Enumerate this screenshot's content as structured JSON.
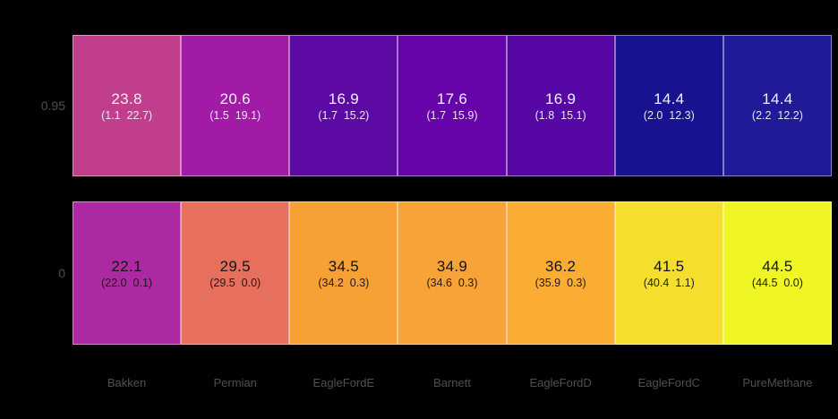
{
  "chart_data": {
    "type": "heatmap",
    "title": "",
    "xlabel": "",
    "ylabel": "",
    "background": "#000000",
    "label_color": "#4f4f4f",
    "cell_border_color": "rgba(255,255,255,0.45)",
    "columns": [
      "Bakken",
      "Permian",
      "EagleFordE",
      "Barnett",
      "EagleFordD",
      "EagleFordC",
      "PureMethane"
    ],
    "rows": [
      {
        "label": "0.95",
        "text_color": "#f2f0f5",
        "cells": [
          {
            "value": 23.8,
            "pair": [
              1.1,
              22.7
            ],
            "sub": "(1.1  22.7)",
            "color": "#c13e8c"
          },
          {
            "value": 20.6,
            "pair": [
              1.5,
              19.1
            ],
            "sub": "(1.5  19.1)",
            "color": "#a21ba6"
          },
          {
            "value": 16.9,
            "pair": [
              1.7,
              15.2
            ],
            "sub": "(1.7  15.2)",
            "color": "#5c0aa3"
          },
          {
            "value": 17.6,
            "pair": [
              1.7,
              15.9
            ],
            "sub": "(1.7  15.9)",
            "color": "#6603a9"
          },
          {
            "value": 16.9,
            "pair": [
              1.8,
              15.1
            ],
            "sub": "(1.8  15.1)",
            "color": "#5707a3"
          },
          {
            "value": 14.4,
            "pair": [
              2.0,
              12.3
            ],
            "sub": "(2.0  12.3)",
            "color": "#171390"
          },
          {
            "value": 14.4,
            "pair": [
              2.2,
              12.2
            ],
            "sub": "(2.2  12.2)",
            "color": "#1e1a98"
          }
        ]
      },
      {
        "label": "0",
        "text_color": "#141414",
        "cells": [
          {
            "value": 22.1,
            "pair": [
              22.0,
              0.1
            ],
            "sub": "(22.0  0.1)",
            "color": "#ad29a1"
          },
          {
            "value": 29.5,
            "pair": [
              29.5,
              0.0
            ],
            "sub": "(29.5  0.0)",
            "color": "#e76f5e"
          },
          {
            "value": 34.5,
            "pair": [
              34.2,
              0.3
            ],
            "sub": "(34.2  0.3)",
            "color": "#f7a036"
          },
          {
            "value": 34.9,
            "pair": [
              34.6,
              0.3
            ],
            "sub": "(34.6  0.3)",
            "color": "#f8a338"
          },
          {
            "value": 36.2,
            "pair": [
              35.9,
              0.3
            ],
            "sub": "(35.9  0.3)",
            "color": "#fbac33"
          },
          {
            "value": 41.5,
            "pair": [
              40.4,
              1.1
            ],
            "sub": "(40.4  1.1)",
            "color": "#f6de2d"
          },
          {
            "value": 44.5,
            "pair": [
              44.5,
              0.0
            ],
            "sub": "(44.5  0.0)",
            "color": "#eff624"
          }
        ]
      }
    ]
  }
}
